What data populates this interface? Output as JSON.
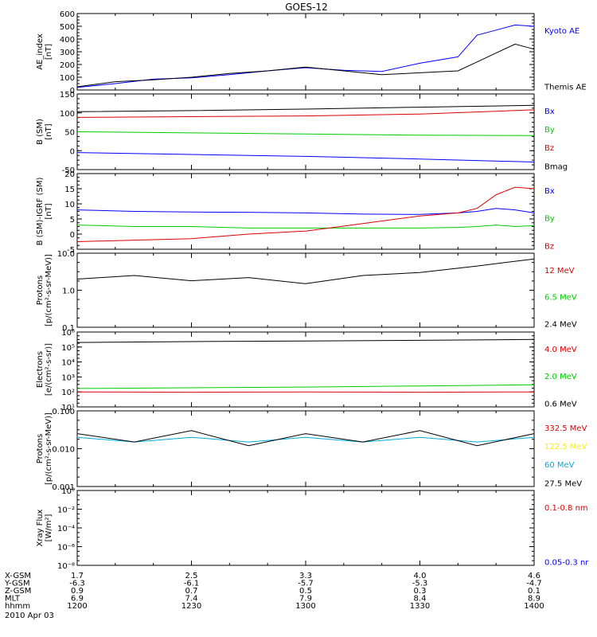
{
  "title": "GOES-12",
  "colors": {
    "black": "#000000",
    "blue": "#0000ff",
    "red": "#dd0000",
    "green": "#00cc00",
    "yellow": "#ffee00",
    "cyan": "#00aadd"
  },
  "time_axis": {
    "ticks": [
      "1200",
      "1230",
      "1300",
      "1330",
      "1400"
    ],
    "rows": [
      {
        "label": "X-GSM",
        "values": [
          "1.7",
          "2.5",
          "3.3",
          "4.0",
          "4.6"
        ]
      },
      {
        "label": "Y-GSM",
        "values": [
          "-6.3",
          "-6.1",
          "-5.7",
          "-5.3",
          "-4.7"
        ]
      },
      {
        "label": "Z-GSM",
        "values": [
          "0.9",
          "0.7",
          "0.5",
          "0.3",
          "0.1"
        ]
      },
      {
        "label": "MLT",
        "values": [
          "6.9",
          "7.4",
          "7.9",
          "8.4",
          "8.9"
        ]
      },
      {
        "label": "hhmm",
        "values": [
          "1200",
          "1230",
          "1300",
          "1330",
          "1400"
        ]
      }
    ],
    "date": "2010 Apr 03"
  },
  "chart_data": [
    {
      "type": "line",
      "ylabel": "AE_index\n[nT]",
      "ylim": [
        0,
        600
      ],
      "yticks": [
        "0",
        "100",
        "200",
        "300",
        "400",
        "500",
        "600"
      ],
      "x": [
        "1200",
        "1210",
        "1220",
        "1230",
        "1240",
        "1250",
        "1300",
        "1310",
        "1320",
        "1330",
        "1340",
        "1345",
        "1350",
        "1355",
        "1400"
      ],
      "series": [
        {
          "name": "Kyoto AE",
          "color": "blue",
          "values": [
            20,
            50,
            85,
            95,
            120,
            150,
            175,
            155,
            145,
            210,
            260,
            430,
            470,
            510,
            500
          ]
        },
        {
          "name": "Themis AE",
          "color": "black",
          "values": [
            25,
            65,
            80,
            100,
            130,
            150,
            180,
            150,
            120,
            135,
            150,
            220,
            290,
            360,
            320
          ]
        }
      ]
    },
    {
      "type": "line",
      "ylabel": "B (SM)\n[nT]",
      "ylim": [
        -50,
        150
      ],
      "yticks": [
        "-50",
        "0",
        "50",
        "100",
        "150"
      ],
      "x": [
        "1200",
        "1230",
        "1300",
        "1330",
        "1400"
      ],
      "series": [
        {
          "name": "Bx",
          "color": "blue",
          "values": [
            -5,
            -10,
            -15,
            -22,
            -30
          ]
        },
        {
          "name": "By",
          "color": "green",
          "values": [
            50,
            47,
            44,
            41,
            40
          ]
        },
        {
          "name": "Bz",
          "color": "red",
          "values": [
            88,
            90,
            92,
            97,
            108
          ]
        },
        {
          "name": "Bmag",
          "color": "black",
          "values": [
            103,
            106,
            110,
            115,
            120
          ]
        }
      ]
    },
    {
      "type": "line",
      "ylabel": "B (SM)-IGRF (SM)\n[nT]",
      "ylim": [
        -5,
        20
      ],
      "yticks": [
        "-5",
        "0",
        "5",
        "10",
        "15",
        "20"
      ],
      "x": [
        "1200",
        "1215",
        "1230",
        "1245",
        "1300",
        "1315",
        "1330",
        "1340",
        "1345",
        "1350",
        "1355",
        "1400"
      ],
      "series": [
        {
          "name": "Bx",
          "color": "blue",
          "values": [
            8,
            7.5,
            7.3,
            7.2,
            7.0,
            6.6,
            6.5,
            7.0,
            7.5,
            8.5,
            8.0,
            7.0
          ]
        },
        {
          "name": "By",
          "color": "green",
          "values": [
            3,
            2.5,
            2.5,
            2.0,
            2.0,
            2.0,
            2.0,
            2.2,
            2.5,
            3.0,
            2.5,
            2.8
          ]
        },
        {
          "name": "Bz",
          "color": "red",
          "values": [
            -2.5,
            -2.0,
            -1.5,
            0,
            1.0,
            3.5,
            6.0,
            7.0,
            8.5,
            13.0,
            15.5,
            15.0
          ]
        }
      ]
    },
    {
      "type": "line",
      "ylabel": "Protons\n[p/(cm²-s-sr-MeV)]",
      "yscale": "log",
      "ylim": [
        0.1,
        10
      ],
      "yticks": [
        "0.1",
        "1.0",
        "10.0"
      ],
      "x": [
        "1200",
        "1215",
        "1230",
        "1245",
        "1300",
        "1315",
        "1330",
        "1345",
        "1400"
      ],
      "series": [
        {
          "name": "12 MeV",
          "color": "red",
          "values": [
            null,
            null,
            null,
            null,
            null,
            null,
            null,
            null,
            null
          ]
        },
        {
          "name": "6.5 MeV",
          "color": "green",
          "values": [
            null,
            null,
            null,
            null,
            null,
            null,
            null,
            null,
            null
          ]
        },
        {
          "name": "2.4 MeV",
          "color": "black",
          "values": [
            2.0,
            2.5,
            1.8,
            2.2,
            1.5,
            2.5,
            3.0,
            4.5,
            7.0
          ]
        }
      ]
    },
    {
      "type": "line",
      "ylabel": "Electrons\n[e/(cm²-s-sr)]",
      "yscale": "log",
      "ylim": [
        10,
        1000000
      ],
      "yticks": [
        "10¹",
        "10²",
        "10³",
        "10⁴",
        "10⁵",
        "10⁶"
      ],
      "x": [
        "1200",
        "1230",
        "1300",
        "1330",
        "1400"
      ],
      "series": [
        {
          "name": "4.0 MeV",
          "color": "red",
          "values": [
            100,
            95,
            100,
            95,
            100
          ]
        },
        {
          "name": "2.0 MeV",
          "color": "green",
          "values": [
            170,
            190,
            210,
            250,
            300
          ]
        },
        {
          "name": "0.6 MeV",
          "color": "black",
          "values": [
            200000,
            230000,
            250000,
            280000,
            320000
          ]
        }
      ]
    },
    {
      "type": "line",
      "ylabel": "Protons\n[p/(cm²-s-sr-MeV)]",
      "yscale": "log",
      "ylim": [
        0.001,
        0.1
      ],
      "yticks": [
        "0.001",
        "0.010",
        "0.100"
      ],
      "x": [
        "1200",
        "1215",
        "1230",
        "1245",
        "1300",
        "1315",
        "1330",
        "1345",
        "1400"
      ],
      "series": [
        {
          "name": "332.5 MeV",
          "color": "red",
          "values": [
            null,
            null,
            null,
            null,
            null,
            null,
            null,
            null,
            null
          ]
        },
        {
          "name": "122.5 MeV",
          "color": "yellow",
          "values": [
            null,
            null,
            null,
            null,
            null,
            null,
            null,
            null,
            null
          ]
        },
        {
          "name": "60 MeV",
          "color": "cyan",
          "values": [
            0.02,
            0.015,
            0.02,
            0.015,
            0.02,
            0.015,
            0.02,
            0.015,
            0.02
          ]
        },
        {
          "name": "27.5 MeV",
          "color": "black",
          "values": [
            0.025,
            0.015,
            0.03,
            0.012,
            0.025,
            0.015,
            0.03,
            0.012,
            0.025
          ]
        }
      ]
    },
    {
      "type": "line",
      "ylabel": "Xray Flux\n[W/m²]",
      "yscale": "log",
      "ylim": [
        1e-09,
        1
      ],
      "yticks": [
        "10⁻⁸",
        "10⁻⁶",
        "10⁻⁴",
        "10⁻²",
        "10⁰"
      ],
      "x": [
        "1200",
        "1400"
      ],
      "series": [
        {
          "name": "0.1-0.8 nm",
          "color": "red",
          "values": [
            null,
            null
          ]
        },
        {
          "name": "0.05-0.3 nr",
          "color": "blue",
          "values": [
            null,
            null
          ]
        }
      ]
    }
  ]
}
